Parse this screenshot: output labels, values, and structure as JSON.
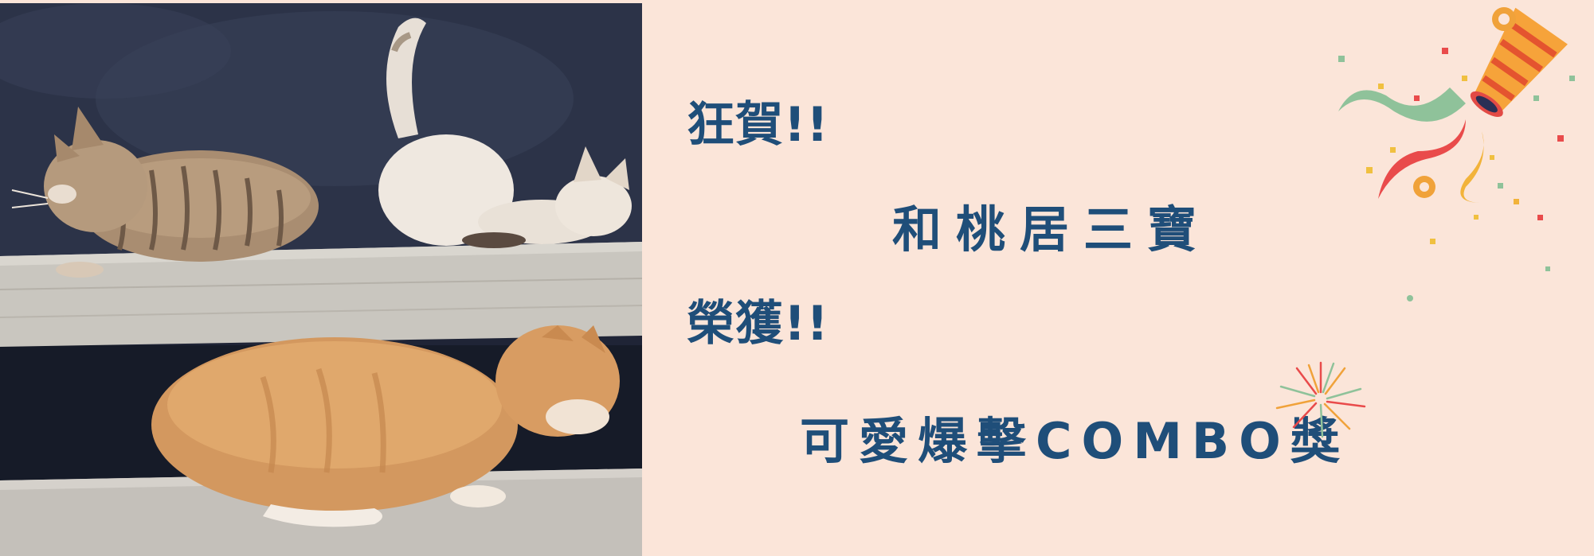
{
  "banner": {
    "line1": "狂賀!!",
    "line2": "和桃居三寶",
    "line3": "榮獲!!",
    "line4": "可愛爆擊COMBO獎"
  },
  "icons": {
    "popper": "party-popper-icon",
    "firework": "firework-icon"
  },
  "colors": {
    "background": "#fbe5d9",
    "text": "#1f4e79"
  }
}
